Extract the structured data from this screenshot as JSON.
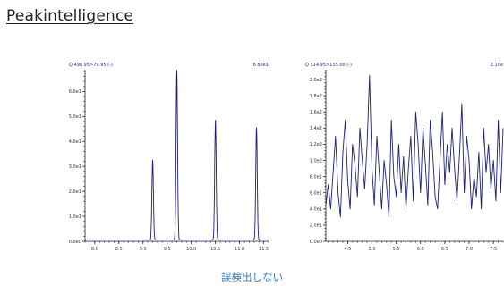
{
  "title": "Peakintelligence",
  "caption": "誤検出しない",
  "colors": {
    "trace": "#1b1f7a",
    "caption": "#3a7cc3",
    "axis": "#222222"
  },
  "chart_data": [
    {
      "type": "line",
      "header_left": "Q 498.95>79.95 (-)",
      "header_right": "6.80e1",
      "xlim": [
        7.8,
        11.6
      ],
      "ylim": [
        0,
        68
      ],
      "x_ticks": [
        "8.0",
        "8.5",
        "9.0",
        "9.5",
        "10.0",
        "10.5",
        "11.0",
        "11.5"
      ],
      "y_ticks": [
        "0.0e0",
        "1.0e1",
        "2.0e1",
        "3.0e1",
        "4.0e1",
        "5.0e1",
        "6.0e1"
      ],
      "peaks": [
        {
          "x": 9.2,
          "y": 32
        },
        {
          "x": 9.7,
          "y": 68
        },
        {
          "x": 10.5,
          "y": 48
        },
        {
          "x": 11.35,
          "y": 45
        }
      ],
      "baseline": 0.5
    },
    {
      "type": "line",
      "header_left": "Q 314.95>135.00 (-)",
      "header_right": "2.10e",
      "xlim": [
        4.05,
        7.7
      ],
      "ylim": [
        0,
        210
      ],
      "x_ticks": [
        "4.5",
        "5.0",
        "5.5",
        "6.0",
        "6.5",
        "7.0",
        "7.5"
      ],
      "y_ticks": [
        "0.0e0",
        "2.0e1",
        "4.0e1",
        "6.0e1",
        "8.0e1",
        "1.0e2",
        "1.2e2",
        "1.4e2",
        "1.6e2",
        "1.8e2",
        "2.0e2"
      ],
      "x": [
        4.05,
        4.1,
        4.15,
        4.2,
        4.25,
        4.3,
        4.35,
        4.4,
        4.45,
        4.5,
        4.55,
        4.6,
        4.65,
        4.7,
        4.75,
        4.8,
        4.85,
        4.9,
        4.95,
        5.0,
        5.05,
        5.1,
        5.15,
        5.2,
        5.25,
        5.3,
        5.35,
        5.4,
        5.45,
        5.5,
        5.55,
        5.6,
        5.65,
        5.7,
        5.75,
        5.8,
        5.85,
        5.9,
        5.95,
        6.0,
        6.05,
        6.1,
        6.15,
        6.2,
        6.25,
        6.3,
        6.35,
        6.4,
        6.45,
        6.5,
        6.55,
        6.6,
        6.65,
        6.7,
        6.75,
        6.8,
        6.85,
        6.9,
        6.95,
        7.0,
        7.05,
        7.1,
        7.15,
        7.2,
        7.25,
        7.3,
        7.35,
        7.4,
        7.45,
        7.5,
        7.55,
        7.6,
        7.65,
        7.7
      ],
      "y": [
        45,
        70,
        40,
        85,
        130,
        60,
        30,
        110,
        150,
        75,
        40,
        120,
        95,
        55,
        140,
        100,
        65,
        120,
        205,
        90,
        45,
        130,
        85,
        40,
        100,
        70,
        30,
        150,
        80,
        55,
        120,
        60,
        105,
        40,
        90,
        130,
        50,
        160,
        120,
        60,
        140,
        95,
        45,
        150,
        110,
        55,
        40,
        100,
        160,
        70,
        120,
        85,
        140,
        90,
        50,
        105,
        170,
        60,
        130,
        100,
        40,
        80,
        55,
        110,
        40,
        140,
        85,
        120,
        65,
        100,
        50,
        150,
        60,
        140
      ]
    }
  ]
}
